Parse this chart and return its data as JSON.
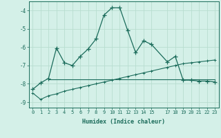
{
  "title": "",
  "xlabel": "Humidex (Indice chaleur)",
  "background_color": "#d4f0e8",
  "grid_color": "#b8ddd0",
  "line_color": "#1a6b5a",
  "xlim": [
    -0.5,
    23.5
  ],
  "ylim": [
    -9.3,
    -3.5
  ],
  "xticks": [
    0,
    1,
    2,
    3,
    4,
    5,
    6,
    7,
    8,
    9,
    10,
    11,
    12,
    13,
    14,
    15,
    17,
    18,
    19,
    20,
    21,
    22,
    23
  ],
  "yticks": [
    -9,
    -8,
    -7,
    -6,
    -5,
    -4
  ],
  "series1_x": [
    0,
    1,
    2,
    3,
    4,
    5,
    6,
    7,
    8,
    9,
    10,
    11,
    12,
    13,
    14,
    15,
    17,
    18,
    19,
    20,
    21,
    22,
    23
  ],
  "series1_y": [
    -8.3,
    -7.95,
    -7.7,
    -6.05,
    -6.85,
    -7.0,
    -6.5,
    -6.1,
    -5.55,
    -4.25,
    -3.85,
    -3.85,
    -5.1,
    -6.3,
    -5.65,
    -5.85,
    -6.8,
    -6.5,
    -7.8,
    -7.8,
    -7.85,
    -7.85,
    -7.9
  ],
  "series2_x": [
    2,
    3,
    4,
    5,
    6,
    7,
    8,
    9,
    10,
    11,
    12,
    13,
    14,
    15,
    17,
    18,
    19,
    20,
    21,
    22,
    23
  ],
  "series2_y": [
    -7.75,
    -7.75,
    -7.75,
    -7.75,
    -7.75,
    -7.75,
    -7.75,
    -7.75,
    -7.75,
    -7.75,
    -7.75,
    -7.75,
    -7.75,
    -7.75,
    -7.75,
    -7.75,
    -7.75,
    -7.75,
    -7.75,
    -7.75,
    -7.75
  ],
  "series3_x": [
    0,
    1,
    2,
    3,
    4,
    5,
    6,
    7,
    8,
    9,
    10,
    11,
    12,
    13,
    14,
    15,
    17,
    18,
    19,
    20,
    21,
    22,
    23
  ],
  "series3_y": [
    -8.5,
    -8.85,
    -8.65,
    -8.55,
    -8.4,
    -8.3,
    -8.2,
    -8.1,
    -8.0,
    -7.9,
    -7.8,
    -7.7,
    -7.6,
    -7.5,
    -7.4,
    -7.3,
    -7.1,
    -7.0,
    -6.9,
    -6.85,
    -6.8,
    -6.75,
    -6.7
  ]
}
